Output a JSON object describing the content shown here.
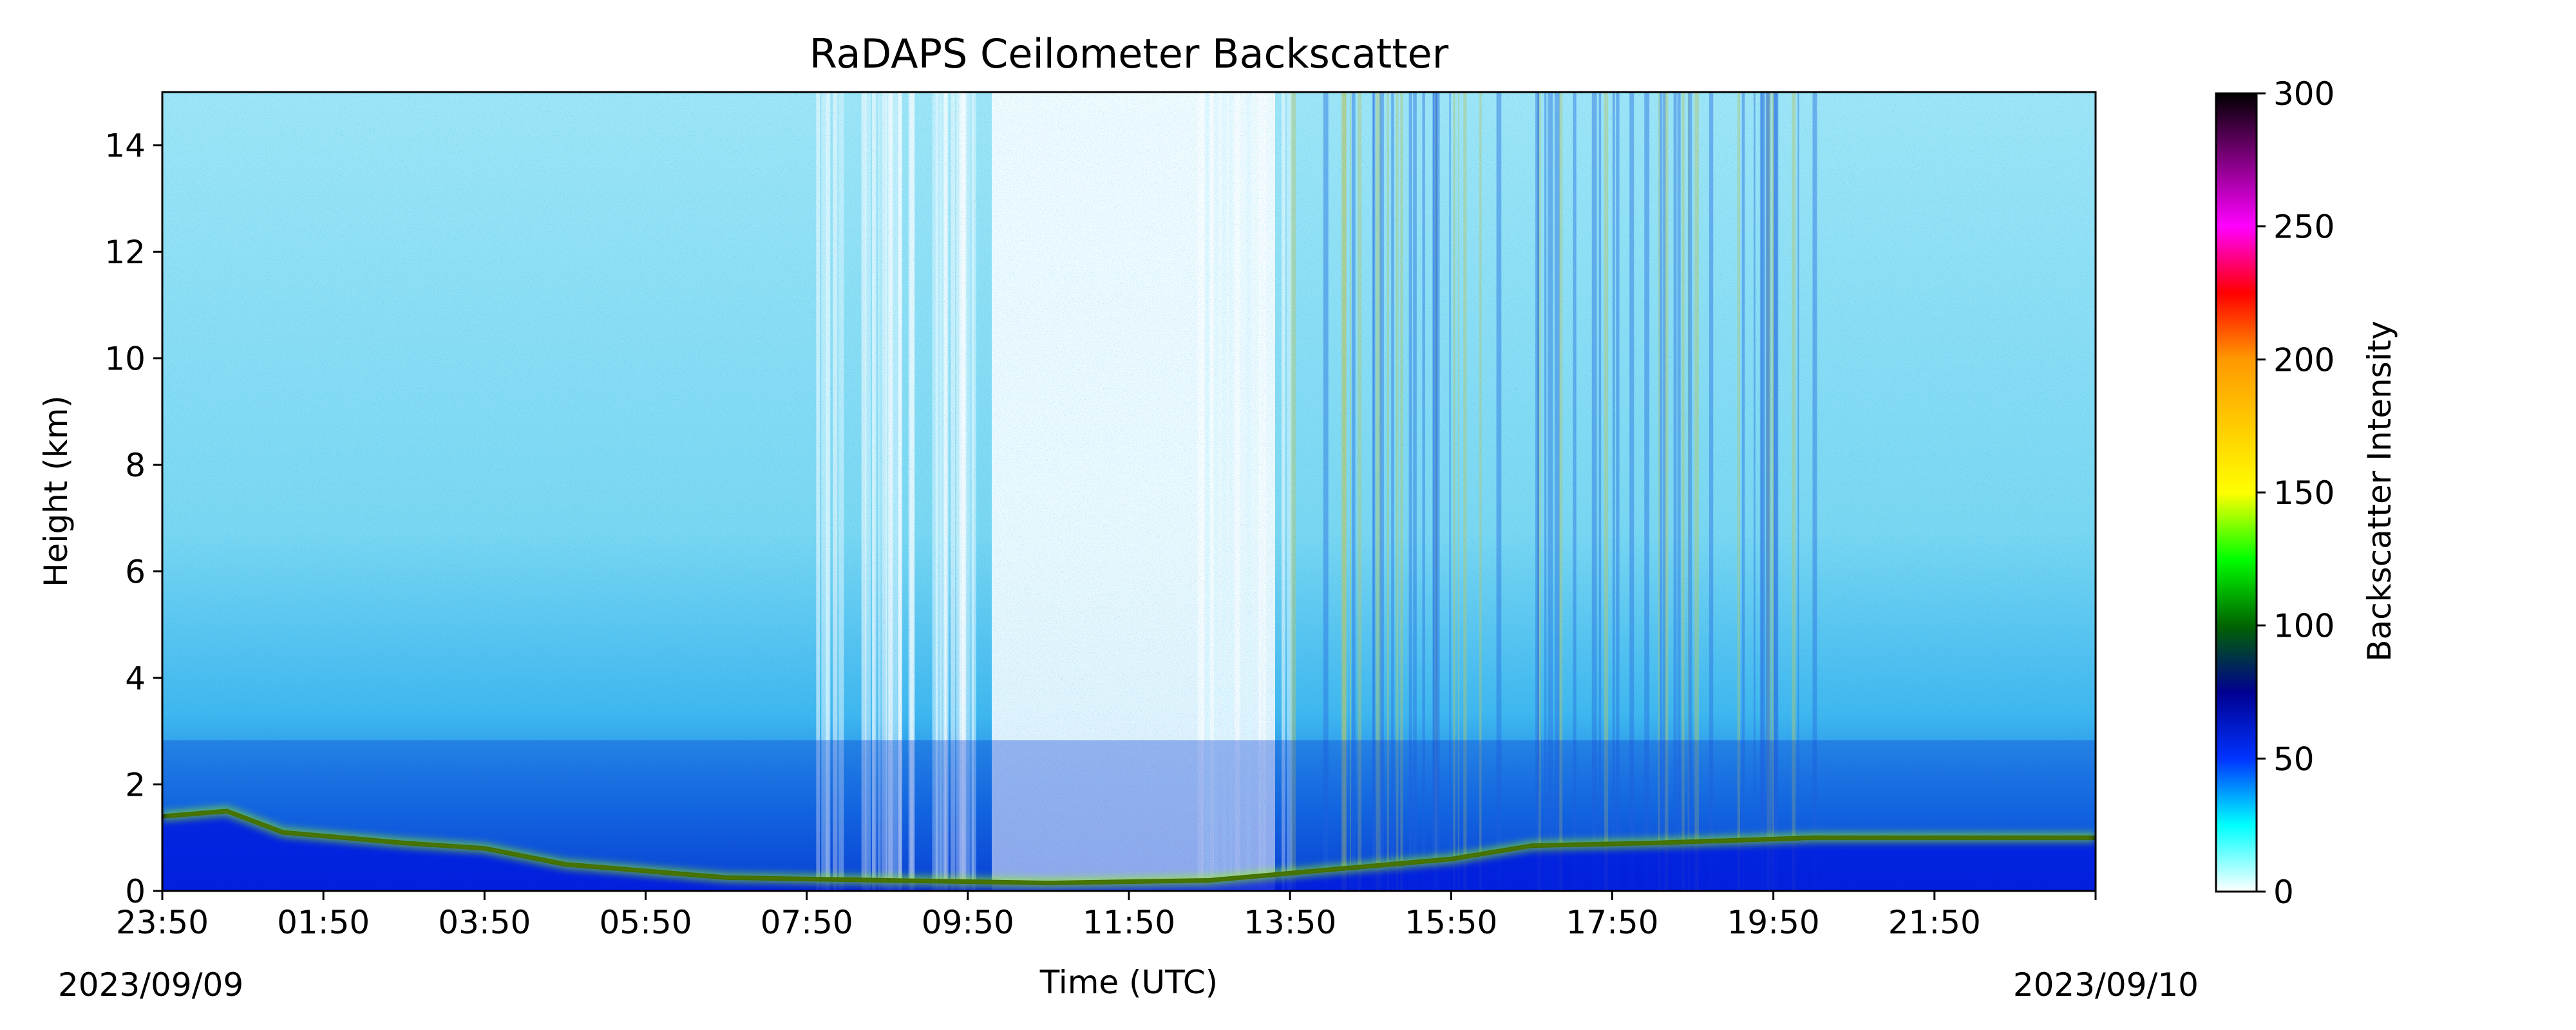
{
  "chart_data": {
    "type": "heatmap",
    "title": "RaDAPS Ceilometer Backscatter",
    "xlabel": "Time (UTC)",
    "ylabel": "Height (km)",
    "colorbar_label": "Backscatter Intensity",
    "x_tick_labels": [
      "23:50",
      "01:50",
      "03:50",
      "05:50",
      "07:50",
      "09:50",
      "11:50",
      "13:50",
      "15:50",
      "17:50",
      "19:50",
      "21:50"
    ],
    "start_date": "2023/09/09",
    "end_date": "2023/09/10",
    "xlim_hours": [
      0,
      24
    ],
    "y_ticks": [
      0,
      2,
      4,
      6,
      8,
      10,
      12,
      14
    ],
    "ylim": [
      0,
      15
    ],
    "colorbar_ticks": [
      0,
      50,
      100,
      150,
      200,
      250,
      300
    ],
    "clim": [
      0,
      300
    ],
    "colormap": [
      {
        "value": 0,
        "color": "#ffffff"
      },
      {
        "value": 25,
        "color": "#00ffff"
      },
      {
        "value": 50,
        "color": "#0033ff"
      },
      {
        "value": 75,
        "color": "#000090"
      },
      {
        "value": 100,
        "color": "#006400"
      },
      {
        "value": 125,
        "color": "#00ff00"
      },
      {
        "value": 150,
        "color": "#ffff00"
      },
      {
        "value": 200,
        "color": "#ff9900"
      },
      {
        "value": 225,
        "color": "#ff0000"
      },
      {
        "value": 250,
        "color": "#ff00ff"
      },
      {
        "value": 300,
        "color": "#000000"
      }
    ],
    "boundary_layer_top_km": [
      {
        "hour": 0.0,
        "height": 1.4
      },
      {
        "hour": 0.8,
        "height": 1.5
      },
      {
        "hour": 1.5,
        "height": 1.1
      },
      {
        "hour": 3.0,
        "height": 0.9
      },
      {
        "hour": 4.0,
        "height": 0.8
      },
      {
        "hour": 5.0,
        "height": 0.5
      },
      {
        "hour": 7.0,
        "height": 0.25
      },
      {
        "hour": 9.0,
        "height": 0.2
      },
      {
        "hour": 11.0,
        "height": 0.15
      },
      {
        "hour": 13.0,
        "height": 0.2
      },
      {
        "hour": 14.5,
        "height": 0.4
      },
      {
        "hour": 16.0,
        "height": 0.6
      },
      {
        "hour": 17.0,
        "height": 0.85
      },
      {
        "hour": 18.5,
        "height": 0.9
      },
      {
        "hour": 20.5,
        "height": 1.0
      },
      {
        "hour": 24.0,
        "height": 1.0
      }
    ]
  }
}
